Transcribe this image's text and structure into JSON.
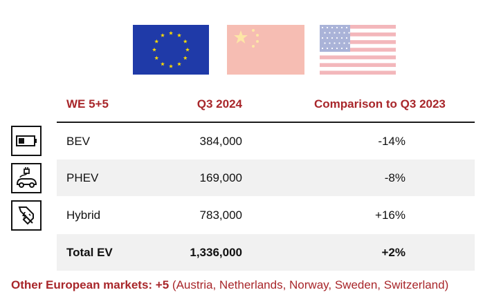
{
  "colors": {
    "accent_red": "#a8262a",
    "eu_blue": "#1f3aa8",
    "eu_star": "#ffdd00",
    "china_faded": "#f6bdb3",
    "china_star": "#fde6a6",
    "usa_faded_red": "#f3b7bb",
    "usa_faded_blue": "#aab3d8",
    "row_shade": "#f1f1f1"
  },
  "flags": [
    {
      "name": "european-union-flag-icon"
    },
    {
      "name": "china-flag-icon"
    },
    {
      "name": "usa-flag-icon"
    }
  ],
  "table": {
    "headers": {
      "market": "WE 5+5",
      "quarter": "Q3 2024",
      "comparison": "Comparison to Q3 2023"
    },
    "rows": [
      {
        "icon": "battery-icon",
        "label": "BEV",
        "value": "384,000",
        "comparison": "-14%"
      },
      {
        "icon": "plug-in-car-icon",
        "label": "PHEV",
        "value": "169,000",
        "comparison": "-8%"
      },
      {
        "icon": "fuel-nozzle-electric-icon",
        "label": "Hybrid",
        "value": "783,000",
        "comparison": "+16%"
      }
    ],
    "total": {
      "label": "Total EV",
      "value": "1,336,000",
      "comparison": "+2%"
    }
  },
  "footnote": {
    "bold": "Other European markets: +5",
    "rest": "(Austria, Netherlands, Norway, Sweden, Switzerland)"
  }
}
